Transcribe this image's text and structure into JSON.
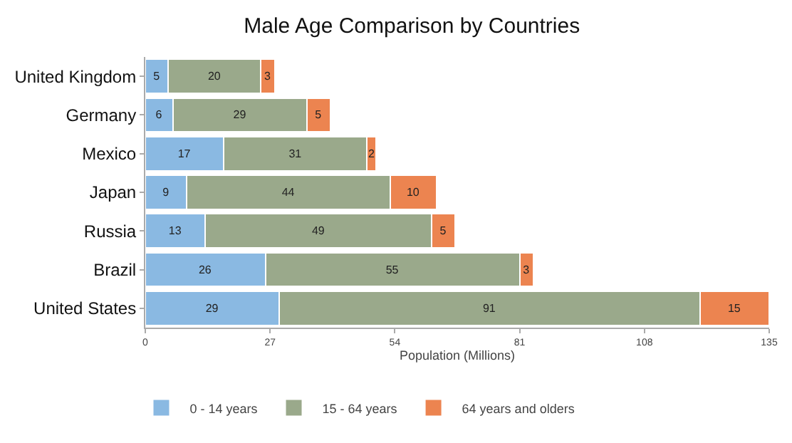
{
  "chart_data": {
    "type": "bar",
    "title": "Male Age Comparison by Countries",
    "xlabel": "Population (Millions)",
    "orientation": "horizontal",
    "stacked": true,
    "data_labels": true,
    "legend": "bottom left",
    "categories": [
      "United Kingdom",
      "Germany",
      "Mexico",
      "Japan",
      "Russia",
      "Brazil",
      "United States"
    ],
    "xlim": [
      0,
      135
    ],
    "xticks": [
      0,
      27,
      54,
      81,
      108,
      135
    ],
    "series": [
      {
        "name": "0 - 14 years",
        "color": "#8ab9e2",
        "values": [
          5,
          6,
          17,
          9,
          13,
          26,
          29
        ]
      },
      {
        "name": "15 - 64 years",
        "color": "#9aa98b",
        "values": [
          20,
          29,
          31,
          44,
          49,
          55,
          91
        ]
      },
      {
        "name": "64 years and olders",
        "color": "#ec8450",
        "values": [
          3,
          5,
          2,
          10,
          5,
          3,
          15
        ]
      }
    ]
  }
}
